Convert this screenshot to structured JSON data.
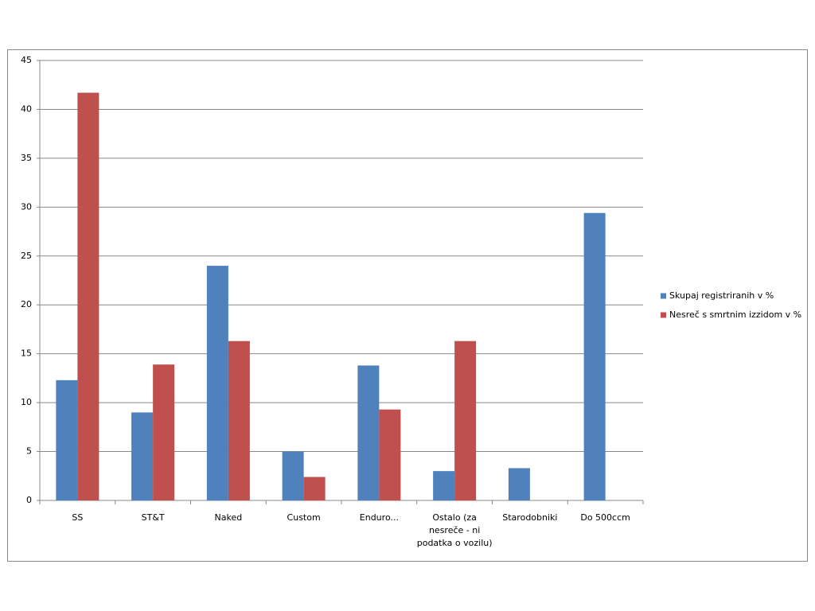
{
  "chart_data": {
    "type": "bar",
    "categories": [
      "SS",
      "ST&T",
      "Naked",
      "Custom",
      "Enduro...",
      "Ostalo (za nesreče - ni podatka o vozilu)",
      "Starodobniki",
      "Do 500ccm"
    ],
    "series": [
      {
        "name": "Skupaj registriranih v %",
        "color": "#4f81bd",
        "values": [
          12.3,
          9.0,
          24.0,
          5.0,
          13.8,
          3.0,
          3.3,
          29.4
        ]
      },
      {
        "name": "Nesreč s smrtnim izzidom v %",
        "color": "#c0504d",
        "values": [
          41.7,
          13.9,
          16.3,
          2.4,
          9.3,
          16.3,
          null,
          null
        ]
      }
    ],
    "ylim": [
      0,
      45
    ],
    "yticks": [
      0,
      5,
      10,
      15,
      20,
      25,
      30,
      35,
      40,
      45
    ],
    "grid": true,
    "legend": "right"
  }
}
